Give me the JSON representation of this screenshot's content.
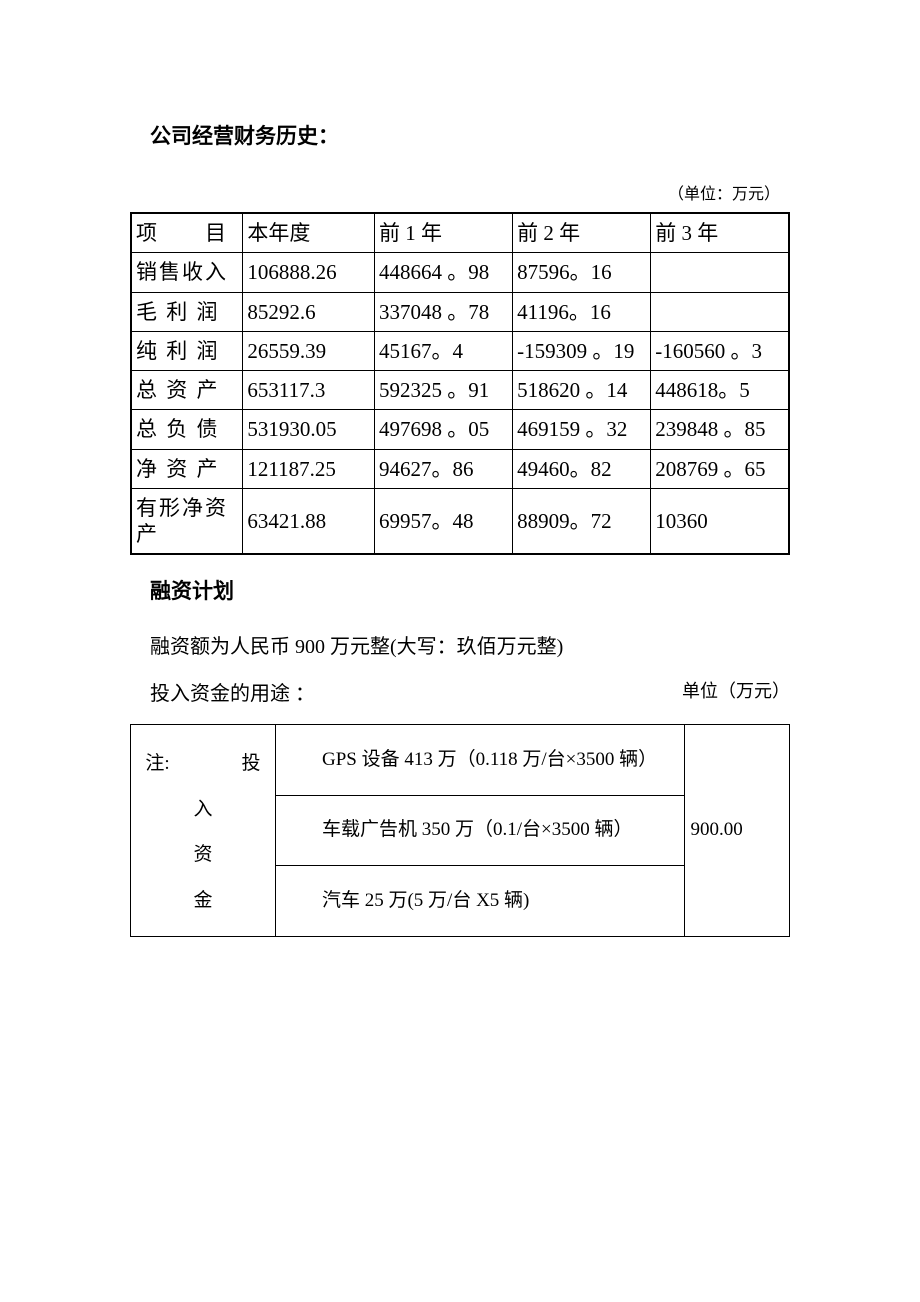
{
  "sections": {
    "finance_history": {
      "title": "公司经营财务历史：",
      "unit_label": "（单位：万元）",
      "table": {
        "headers": [
          "项　　目",
          "本年度",
          "前 1 年",
          "前 2 年",
          "前 3 年"
        ],
        "rows": [
          {
            "label": "销售收入",
            "y0": "106888.26",
            "y1": "448664 。98",
            "y2": "87596。16",
            "y3": ""
          },
          {
            "label": "毛 利 润",
            "y0": "85292.6",
            "y1": "337048 。78",
            "y2": "41196。16",
            "y3": ""
          },
          {
            "label": "纯 利 润",
            "y0": "26559.39",
            "y1": "45167。4",
            "y2": "-159309 。19",
            "y3": "-160560 。3"
          },
          {
            "label": "总 资 产",
            "y0": "653117.3",
            "y1": "592325 。91",
            "y2": "518620 。14",
            "y3": "448618。5"
          },
          {
            "label": "总 负 债",
            "y0": "531930.05",
            "y1": "497698 。05",
            "y2": "469159 。32",
            "y3": "239848 。85"
          },
          {
            "label": "净 资 产",
            "y0": "121187.25",
            "y1": "94627。86",
            "y2": "49460。82",
            "y3": "208769 。65"
          },
          {
            "label": "有形净资产",
            "y0": "63421.88",
            "y1": "69957。48",
            "y2": "88909。72",
            "y3": "10360"
          }
        ]
      }
    },
    "funding_plan": {
      "title": "融资计划",
      "amount_text": "融资额为人民币 900 万元整(大写：玖佰万元整)",
      "usage_label": "投入资金的用途 ：",
      "usage_unit": "单位（万元）",
      "usage_table": {
        "col1_line1_left": "注:",
        "col1_line1_right": "投",
        "col1_line2": "入",
        "col1_line3": "资",
        "col1_line4": "金",
        "items": [
          "GPS 设备 413 万（0.118 万/台×3500 辆）",
          "车载广告机 350 万（0.1/台×3500 辆）",
          "汽车 25 万(5 万/台 X5 辆)"
        ],
        "total": "900.00"
      }
    }
  },
  "colors": {
    "text": "#000000",
    "background": "#ffffff",
    "border": "#000000"
  }
}
